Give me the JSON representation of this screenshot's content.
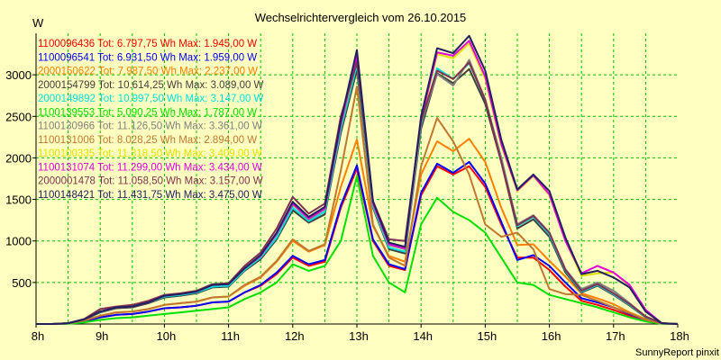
{
  "chart_data": {
    "type": "line",
    "title": "Wechselrichtervergleich vom 26.10.2015",
    "ylabel": "W",
    "xlabel": "",
    "footer": "SunnyReport pinxit",
    "background": "#ffffc0",
    "grid": true,
    "grid_color": "#00c000",
    "legend_placement": "top-left",
    "xlim": [
      8,
      18
    ],
    "ylim": [
      0,
      3500
    ],
    "x_ticks": [
      8,
      9,
      10,
      11,
      12,
      13,
      14,
      15,
      16,
      17,
      18
    ],
    "x_tick_labels": [
      "8h",
      "9h",
      "10h",
      "11h",
      "12h",
      "13h",
      "14h",
      "15h",
      "16h",
      "17h",
      "18h"
    ],
    "y_ticks": [
      500,
      1000,
      1500,
      2000,
      2500,
      3000
    ],
    "y_tick_labels": [
      "500",
      "1000",
      "1500",
      "2000",
      "2500",
      "3000"
    ],
    "x": [
      8.0,
      8.25,
      8.5,
      8.75,
      9.0,
      9.25,
      9.5,
      9.75,
      10.0,
      10.25,
      10.5,
      10.75,
      11.0,
      11.25,
      11.5,
      11.75,
      12.0,
      12.25,
      12.5,
      12.75,
      13.0,
      13.25,
      13.5,
      13.75,
      14.0,
      14.25,
      14.5,
      14.75,
      15.0,
      15.25,
      15.5,
      15.75,
      16.0,
      16.25,
      16.5,
      16.75,
      17.0,
      17.25,
      17.5,
      17.75,
      18.0
    ],
    "series": [
      {
        "label": "1100096436 Tot: 6.797,75 Wh Max: 1.945,00 W",
        "color": "#ff0000",
        "values": [
          0,
          0,
          5,
          30,
          80,
          110,
          120,
          150,
          190,
          200,
          220,
          260,
          270,
          380,
          460,
          600,
          800,
          700,
          750,
          1400,
          1870,
          1000,
          700,
          650,
          1550,
          1900,
          1800,
          1900,
          1650,
          1200,
          800,
          800,
          650,
          450,
          280,
          230,
          170,
          100,
          40,
          5,
          0
        ]
      },
      {
        "label": "1100096541 Tot: 6.931,50 Wh Max: 1.959,00 W",
        "color": "#0000ff",
        "values": [
          0,
          0,
          5,
          30,
          80,
          110,
          120,
          150,
          190,
          200,
          220,
          260,
          270,
          380,
          470,
          620,
          820,
          720,
          770,
          1430,
          1910,
          1020,
          720,
          660,
          1580,
          1930,
          1820,
          1950,
          1690,
          1230,
          770,
          830,
          700,
          500,
          310,
          260,
          200,
          120,
          50,
          5,
          0
        ]
      },
      {
        "label": "2000150622 Tot: 7.987,50 Wh Max: 2.237,00 W",
        "color": "#ff8000",
        "values": [
          0,
          0,
          8,
          40,
          100,
          140,
          150,
          180,
          230,
          250,
          270,
          320,
          330,
          460,
          560,
          750,
          1000,
          870,
          950,
          1650,
          2220,
          1180,
          820,
          750,
          1800,
          2200,
          2080,
          2230,
          1950,
          1400,
          950,
          960,
          760,
          570,
          370,
          310,
          240,
          140,
          60,
          8,
          0
        ]
      },
      {
        "label": "2000154799 Tot: 10.614,25 Wh Max: 3.089,00 W",
        "color": "#404040",
        "values": [
          0,
          0,
          10,
          50,
          140,
          190,
          200,
          250,
          320,
          340,
          370,
          440,
          450,
          640,
          780,
          1020,
          1370,
          1220,
          1320,
          2300,
          3060,
          1400,
          900,
          850,
          2350,
          3020,
          2900,
          3070,
          2650,
          1950,
          1150,
          1260,
          1050,
          620,
          380,
          460,
          350,
          220,
          80,
          10,
          0
        ]
      },
      {
        "label": "2000149892 Tot: 10.997,50 Wh Max: 3.147,00 W",
        "color": "#00e0e0",
        "values": [
          0,
          0,
          10,
          55,
          145,
          200,
          210,
          260,
          330,
          350,
          380,
          450,
          460,
          650,
          800,
          1040,
          1400,
          1240,
          1350,
          2350,
          3120,
          1420,
          920,
          870,
          2400,
          3080,
          2950,
          3140,
          2700,
          2000,
          1180,
          1290,
          1080,
          640,
          390,
          470,
          360,
          230,
          85,
          10,
          0
        ]
      },
      {
        "label": "1100139553 Tot: 5.090,25 Wh Max: 1.787,00 W",
        "color": "#00e000",
        "values": [
          0,
          0,
          3,
          20,
          50,
          70,
          80,
          100,
          120,
          140,
          160,
          180,
          200,
          300,
          380,
          500,
          720,
          640,
          700,
          1000,
          1780,
          820,
          500,
          380,
          1200,
          1520,
          1350,
          1250,
          1100,
          800,
          500,
          470,
          350,
          300,
          250,
          200,
          140,
          80,
          30,
          3,
          0
        ]
      },
      {
        "label": "1100130966 Tot: 11.126,50 Wh Max: 3.361,00 W",
        "color": "#808080",
        "values": [
          0,
          0,
          10,
          55,
          150,
          200,
          210,
          260,
          340,
          360,
          390,
          470,
          480,
          670,
          820,
          1080,
          1440,
          1260,
          1380,
          2400,
          3180,
          1440,
          950,
          900,
          2420,
          3010,
          2870,
          3180,
          2700,
          2000,
          1200,
          1310,
          1100,
          660,
          420,
          500,
          400,
          250,
          90,
          10,
          0
        ]
      },
      {
        "label": "1100131006 Tot: 8.028,25 Wh Max: 2.894,00 W",
        "color": "#c07830",
        "values": [
          0,
          0,
          8,
          40,
          100,
          140,
          150,
          180,
          230,
          250,
          270,
          320,
          330,
          470,
          570,
          760,
          1020,
          880,
          960,
          1850,
          2860,
          1200,
          800,
          700,
          1900,
          2480,
          2200,
          1800,
          1200,
          1050,
          1100,
          900,
          420,
          360,
          350,
          280,
          200,
          130,
          50,
          8,
          0
        ]
      },
      {
        "label": "1100100335 Tot: 11.318,50 Wh Max: 3.409,00 W",
        "color": "#e0e000",
        "values": [
          0,
          0,
          10,
          55,
          150,
          200,
          210,
          260,
          340,
          360,
          390,
          470,
          480,
          670,
          820,
          1090,
          1450,
          1270,
          1390,
          2420,
          3200,
          1460,
          960,
          910,
          2450,
          3250,
          3200,
          3380,
          2950,
          2150,
          1600,
          1780,
          1550,
          1000,
          580,
          610,
          620,
          460,
          160,
          10,
          0
        ]
      },
      {
        "label": "1100131074 Tot: 11.299,00 Wh Max: 3.434,00 W",
        "color": "#e000e0",
        "values": [
          0,
          0,
          10,
          55,
          150,
          200,
          210,
          260,
          340,
          360,
          390,
          470,
          480,
          670,
          820,
          1090,
          1450,
          1270,
          1390,
          2420,
          3230,
          1460,
          960,
          910,
          2470,
          3270,
          3230,
          3410,
          2980,
          2170,
          1610,
          1790,
          1560,
          1000,
          610,
          700,
          620,
          470,
          170,
          10,
          0
        ]
      },
      {
        "label": "2000001478 Tot: 11.058,50 Wh Max: 3.157,00 W",
        "color": "#803050",
        "values": [
          0,
          0,
          10,
          60,
          180,
          210,
          230,
          280,
          350,
          370,
          400,
          480,
          490,
          700,
          860,
          1150,
          1530,
          1330,
          1450,
          2500,
          3150,
          1480,
          1020,
          1000,
          2450,
          3050,
          2950,
          3150,
          2700,
          1950,
          1190,
          1300,
          1100,
          650,
          400,
          480,
          370,
          240,
          90,
          10,
          0
        ]
      },
      {
        "label": "1100148421 Tot: 11.431,75 Wh Max: 3.475,00 W",
        "color": "#202060",
        "values": [
          0,
          0,
          10,
          55,
          150,
          200,
          210,
          260,
          340,
          360,
          390,
          470,
          480,
          670,
          830,
          1100,
          1470,
          1290,
          1410,
          2450,
          3300,
          1480,
          980,
          930,
          2500,
          3320,
          3260,
          3470,
          3050,
          2220,
          1620,
          1800,
          1600,
          1040,
          600,
          640,
          560,
          440,
          150,
          10,
          0
        ]
      }
    ]
  }
}
